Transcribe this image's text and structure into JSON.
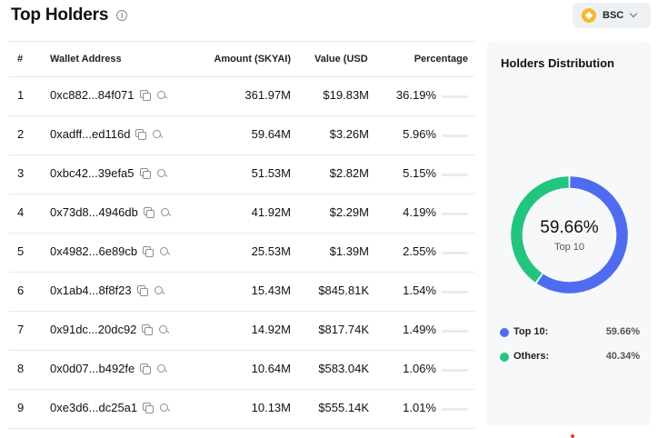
{
  "header": {
    "title": "Top Holders",
    "info_icon": "i"
  },
  "chain_selector": {
    "label": "BSC",
    "logo_icon": "bnb-logo-icon",
    "logo_color": "#F3BA2F"
  },
  "table": {
    "columns": [
      "#",
      "Wallet Address",
      "Amount (SKYAI)",
      "Value (USD",
      "Percentage"
    ],
    "rows": [
      {
        "rank": "1",
        "address": "0xc882...84f071",
        "amount": "361.97M",
        "value": "$19.83M",
        "percentage": "36.19%",
        "pct_value": 36.19
      },
      {
        "rank": "2",
        "address": "0xadff...ed116d",
        "amount": "59.64M",
        "value": "$3.26M",
        "percentage": "5.96%",
        "pct_value": 5.96
      },
      {
        "rank": "3",
        "address": "0xbc42...39efa5",
        "amount": "51.53M",
        "value": "$2.82M",
        "percentage": "5.15%",
        "pct_value": 5.15
      },
      {
        "rank": "4",
        "address": "0x73d8...4946db",
        "amount": "41.92M",
        "value": "$2.29M",
        "percentage": "4.19%",
        "pct_value": 4.19
      },
      {
        "rank": "5",
        "address": "0x4982...6e89cb",
        "amount": "25.53M",
        "value": "$1.39M",
        "percentage": "2.55%",
        "pct_value": 2.55
      },
      {
        "rank": "6",
        "address": "0x1ab4...8f8f23",
        "amount": "15.43M",
        "value": "$845.81K",
        "percentage": "1.54%",
        "pct_value": 1.54
      },
      {
        "rank": "7",
        "address": "0x91dc...20dc92",
        "amount": "14.92M",
        "value": "$817.74K",
        "percentage": "1.49%",
        "pct_value": 1.49
      },
      {
        "rank": "8",
        "address": "0x0d07...b492fe",
        "amount": "10.64M",
        "value": "$583.04K",
        "percentage": "1.06%",
        "pct_value": 1.06
      },
      {
        "rank": "9",
        "address": "0xe3d6...dc25a1",
        "amount": "10.13M",
        "value": "$555.14K",
        "percentage": "1.01%",
        "pct_value": 1.01
      }
    ],
    "bar_color": "#6c7681",
    "bar_track_color": "#e9ecef"
  },
  "distribution": {
    "title": "Holders Distribution",
    "center_value": "59.66%",
    "center_label": "Top 10",
    "legend": [
      {
        "name": "Top 10:",
        "value": "59.66%",
        "color": "#4f6cf0"
      },
      {
        "name": "Others:",
        "value": "40.34%",
        "color": "#22c47e"
      }
    ]
  },
  "chart_data": {
    "type": "pie",
    "categories": [
      "Top 10",
      "Others"
    ],
    "values": [
      59.66,
      40.34
    ],
    "colors": [
      "#4f6cf0",
      "#22c47e"
    ]
  }
}
